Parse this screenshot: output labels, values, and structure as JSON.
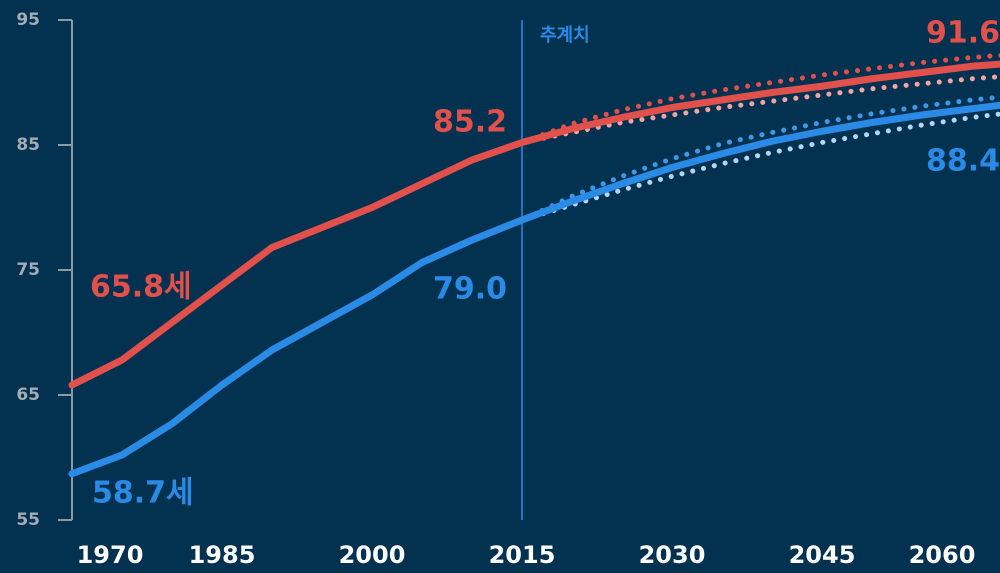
{
  "chart_data": {
    "type": "line",
    "x": [
      1970,
      1975,
      1980,
      1985,
      1990,
      1995,
      2000,
      2005,
      2010,
      2015,
      2020,
      2025,
      2030,
      2035,
      2040,
      2045,
      2050,
      2055,
      2060,
      2065
    ],
    "series": [
      {
        "color": "#e2504c",
        "style": "solid",
        "values": [
          65.8,
          67.8,
          70.8,
          73.8,
          76.8,
          78.4,
          80.0,
          81.9,
          83.8,
          85.2,
          86.3,
          87.2,
          88.0,
          88.6,
          89.2,
          89.7,
          90.3,
          90.8,
          91.3,
          91.6
        ]
      },
      {
        "color": "#2a8be6",
        "style": "solid",
        "values": [
          58.7,
          60.2,
          62.7,
          65.8,
          68.6,
          70.8,
          73.0,
          75.6,
          77.4,
          79.0,
          80.5,
          81.9,
          83.2,
          84.3,
          85.3,
          86.1,
          86.8,
          87.4,
          87.9,
          88.4
        ]
      },
      {
        "color": "#e2504c",
        "style": "dotted",
        "values": [
          null,
          null,
          null,
          null,
          null,
          null,
          null,
          null,
          null,
          85.2,
          86.7,
          87.8,
          88.7,
          89.4,
          90.0,
          90.6,
          91.1,
          91.6,
          92.0,
          92.3
        ]
      },
      {
        "color": "#f4a3a3",
        "style": "dotted",
        "values": [
          null,
          null,
          null,
          null,
          null,
          null,
          null,
          null,
          null,
          85.2,
          86.0,
          86.8,
          87.4,
          88.0,
          88.5,
          89.0,
          89.5,
          89.9,
          90.3,
          90.6
        ]
      },
      {
        "color": "#3f97ea",
        "style": "dotted",
        "values": [
          null,
          null,
          null,
          null,
          null,
          null,
          null,
          null,
          null,
          79.0,
          80.9,
          82.5,
          83.9,
          85.1,
          86.0,
          86.8,
          87.5,
          88.1,
          88.6,
          89.0
        ]
      },
      {
        "color": "#b3d6f6",
        "style": "dotted",
        "values": [
          null,
          null,
          null,
          null,
          null,
          null,
          null,
          null,
          null,
          79.0,
          80.2,
          81.4,
          82.5,
          83.5,
          84.4,
          85.2,
          85.9,
          86.6,
          87.2,
          87.7
        ]
      }
    ],
    "xlim": [
      1970,
      2062.8
    ],
    "xticks": [
      1970,
      1985,
      2000,
      2015,
      2030,
      2045,
      2060
    ],
    "ylim": [
      55,
      95
    ],
    "yticks": [
      55,
      65,
      75,
      85,
      95
    ],
    "projection_start": 2015,
    "projection_label": "추계치",
    "annotations": [
      {
        "text": "65.8세",
        "color": "#e2504c"
      },
      {
        "text": "58.7세",
        "color": "#2a8be6"
      },
      {
        "text": "85.2",
        "color": "#e2504c"
      },
      {
        "text": "79.0",
        "color": "#2a8be6"
      },
      {
        "text": "91.6",
        "color": "#e2504c"
      },
      {
        "text": "88.4",
        "color": "#2a8be6"
      }
    ]
  }
}
